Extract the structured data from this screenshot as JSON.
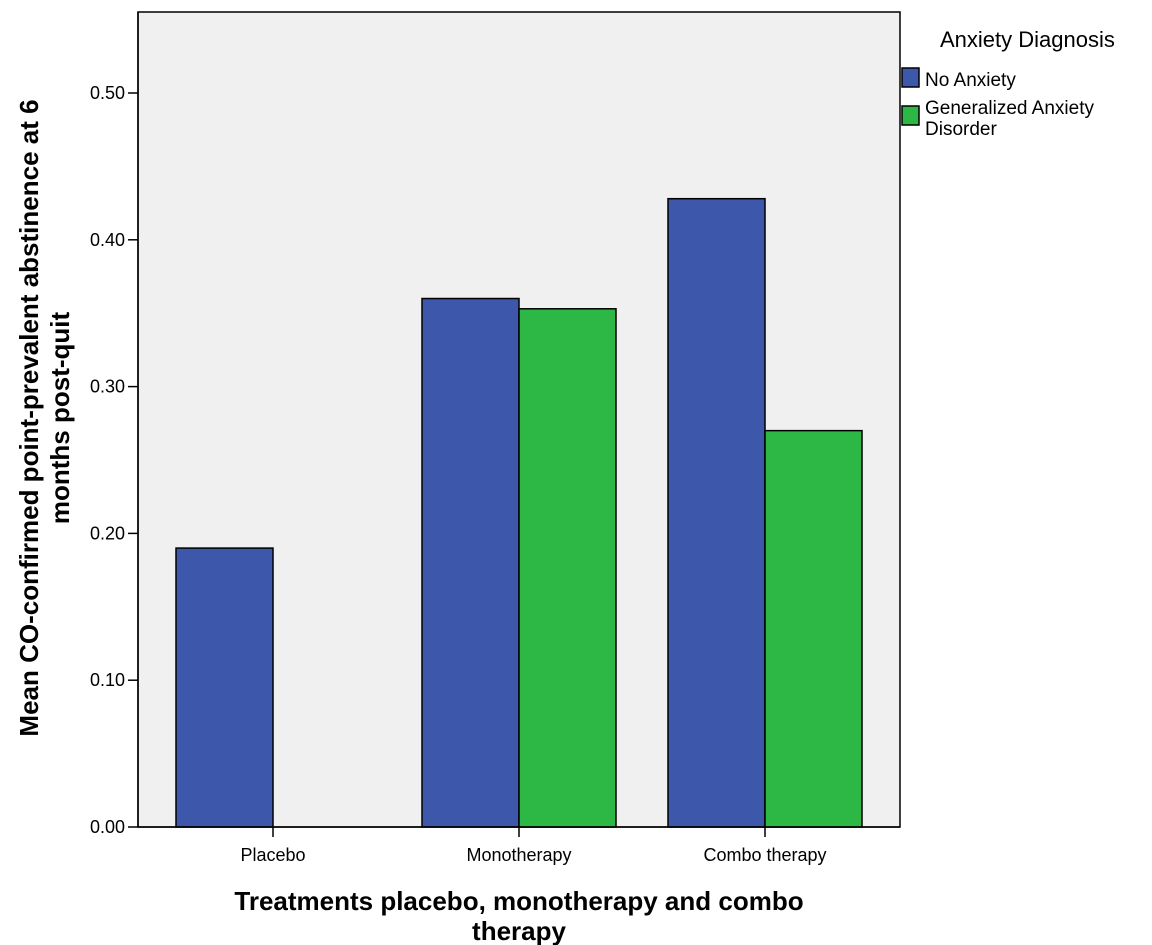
{
  "chart_data": {
    "type": "bar",
    "title": "",
    "xlabel_lines": [
      "Treatments placebo, monotherapy and combo",
      "therapy"
    ],
    "ylabel_lines": [
      "Mean CO-confirmed point-prevalent abstinence at 6",
      "months post-quit"
    ],
    "categories": [
      "Placebo",
      "Monotherapy",
      "Combo therapy"
    ],
    "series": [
      {
        "name": "No Anxiety",
        "color": "#3d58ab",
        "values": [
          0.19,
          0.36,
          0.428
        ]
      },
      {
        "name": "Generalized Anxiety Disorder",
        "color": "#2db745",
        "values": [
          0.0,
          0.353,
          0.27
        ]
      }
    ],
    "ylim": [
      0,
      0.5
    ],
    "yticks": [
      "0.00",
      "0.10",
      "0.20",
      "0.30",
      "0.40",
      "0.50"
    ],
    "legend": {
      "title": "Anxiety Diagnosis",
      "position": "top-right",
      "entries": [
        {
          "lines": [
            "No Anxiety"
          ]
        },
        {
          "lines": [
            "Generalized Anxiety",
            "Disorder"
          ]
        }
      ]
    },
    "grid": false,
    "plot_background": "#f0f0f0"
  }
}
